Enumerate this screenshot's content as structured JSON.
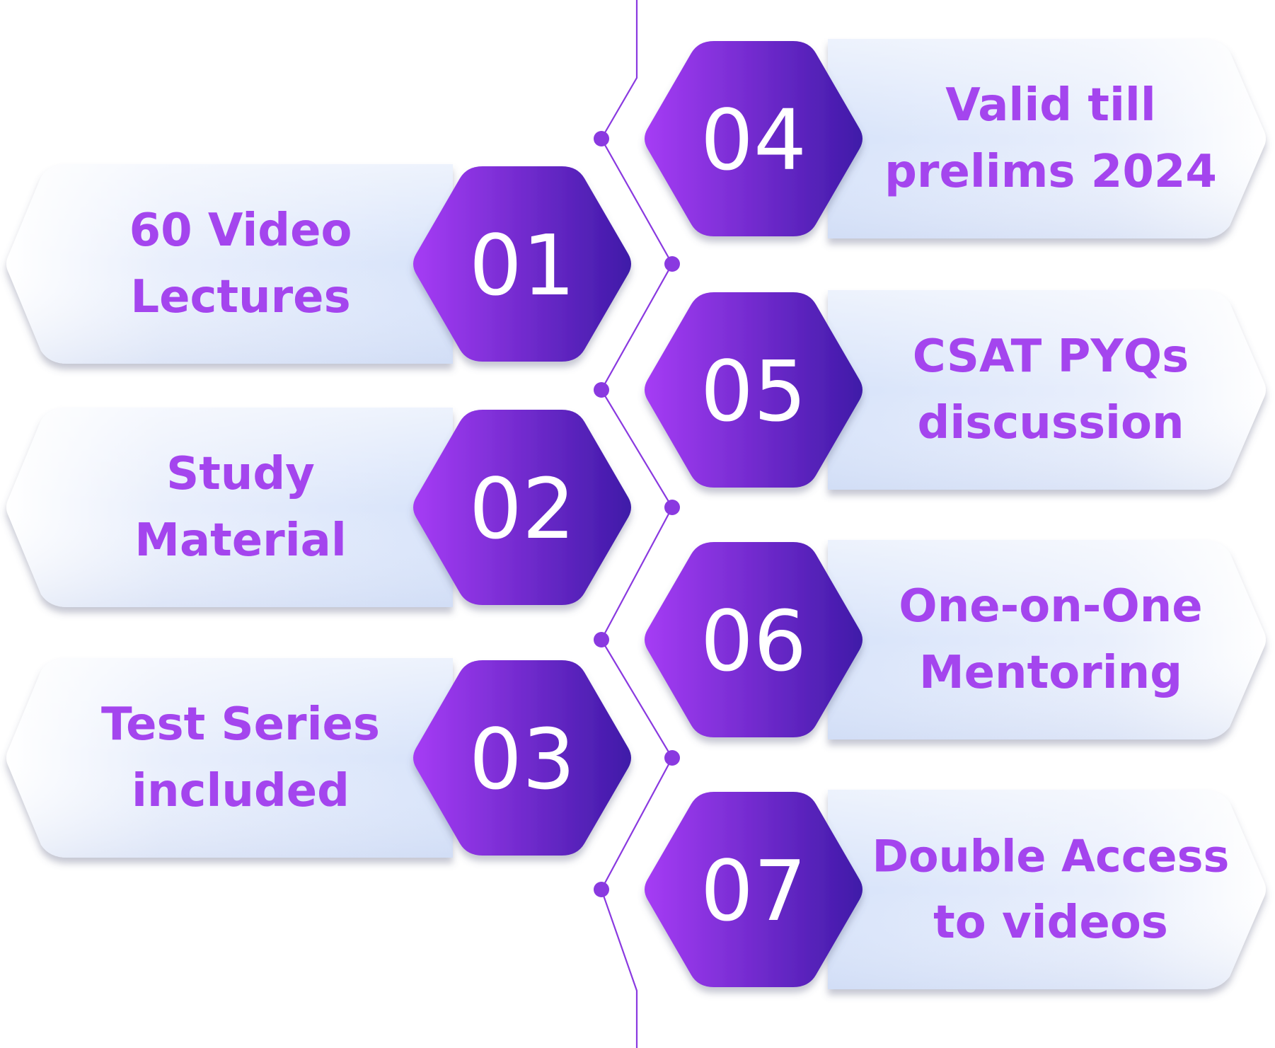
{
  "colors": {
    "accent": "#a445ee",
    "hex_gradient_start": "#a63cf5",
    "hex_gradient_end": "#3f1aa8",
    "banner_fill": "#dde7fb",
    "banner_fade": "#ffffff",
    "connector": "#8a39e0",
    "number_text": "#ffffff"
  },
  "items": [
    {
      "number": "01",
      "lines": [
        "60 Video",
        "Lectures"
      ],
      "side": "left"
    },
    {
      "number": "02",
      "lines": [
        "Study",
        "Material"
      ],
      "side": "left"
    },
    {
      "number": "03",
      "lines": [
        "Test Series",
        "included"
      ],
      "side": "left"
    },
    {
      "number": "04",
      "lines": [
        "Valid till",
        "prelims 2024"
      ],
      "side": "right"
    },
    {
      "number": "05",
      "lines": [
        "CSAT PYQs",
        "discussion"
      ],
      "side": "right"
    },
    {
      "number": "06",
      "lines": [
        "One-on-One",
        "Mentoring"
      ],
      "side": "right"
    },
    {
      "number": "07",
      "lines": [
        "Double Access",
        "to videos"
      ],
      "side": "right"
    }
  ]
}
